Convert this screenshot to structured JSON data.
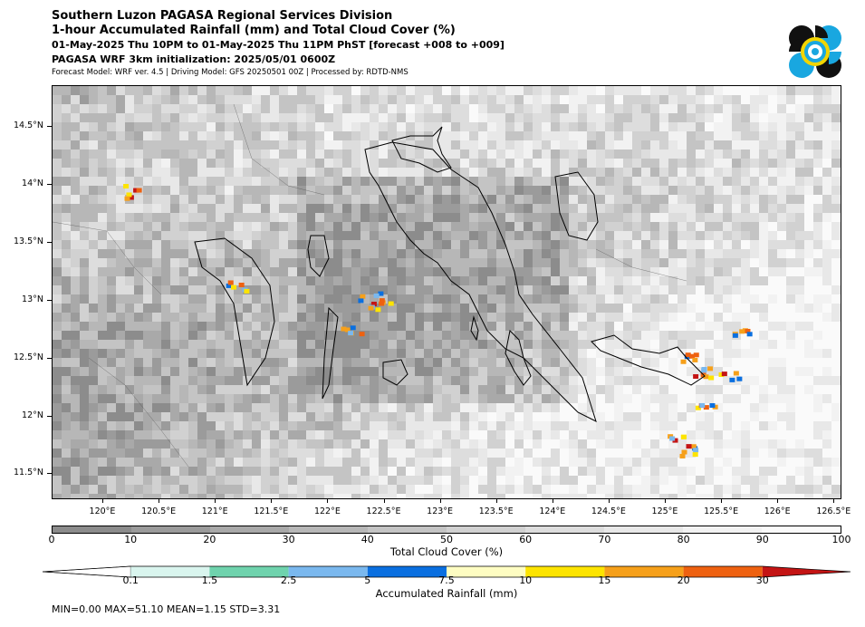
{
  "header": {
    "line1": "Southern Luzon PAGASA Regional Services Division",
    "line2": "1-hour Accumulated Rainfall (mm) and Total Cloud Cover (%)",
    "line3": "01-May-2025 Thu 10PM to 01-May-2025 Thu 11PM PhST [forecast +008 to +009]",
    "line4": "PAGASA WRF 3km initialization: 2025/05/01 0600Z",
    "line5": "Forecast Model: WRF ver. 4.5 | Driving Model: GFS 20250501 00Z | Processed by: RDTD-NMS"
  },
  "logo": {
    "icon": "pagasa-logo",
    "colors": [
      "#111111",
      "#19a7e0",
      "#f2d500",
      "#ffffff"
    ]
  },
  "map": {
    "lon_ticks": [
      "120°E",
      "120.5°E",
      "121°E",
      "121.5°E",
      "122°E",
      "122.5°E",
      "123°E",
      "123.5°E",
      "124°E",
      "124.5°E",
      "125°E",
      "125.5°E",
      "126°E",
      "126.5°E"
    ],
    "lat_ticks": [
      "14.5°N",
      "14°N",
      "13.5°N",
      "13°N",
      "12.5°N",
      "12°N",
      "11.5°N"
    ],
    "lon_range": [
      119.5,
      126.5
    ],
    "lat_range": [
      11.3,
      14.85
    ]
  },
  "cloud_colorbar": {
    "ticks": [
      "0",
      "10",
      "20",
      "30",
      "40",
      "50",
      "60",
      "70",
      "80",
      "90",
      "100"
    ],
    "colors": [
      "#8c8c8c",
      "#9b9b9b",
      "#a9a9a9",
      "#b7b7b7",
      "#c4c4c4",
      "#d1d1d1",
      "#dddddd",
      "#e8e8e8",
      "#f2f2f2",
      "#fafafa"
    ],
    "label": "Total Cloud Cover (%)"
  },
  "rain_colorbar": {
    "ticks": [
      "0.1",
      "1.5",
      "2.5",
      "5",
      "7.5",
      "10",
      "15",
      "20",
      "30"
    ],
    "colors": [
      "#ffffff",
      "#d9f5ee",
      "#6fd3ad",
      "#7ab8ee",
      "#0a6fe0",
      "#fefdc2",
      "#fde400",
      "#f6a01a",
      "#ee6110",
      "#c41414"
    ],
    "label": "Accumulated Rainfall (mm)"
  },
  "stats": {
    "text": "MIN=0.00   MAX=51.10   MEAN=1.15   STD=3.31"
  }
}
